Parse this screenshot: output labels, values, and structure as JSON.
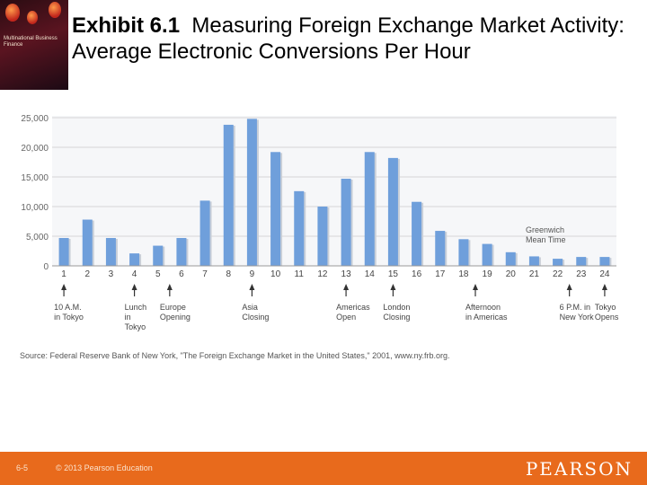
{
  "slide": {
    "title_bold": "Exhibit 6.1",
    "title_rest": "Measuring Foreign Exchange Market Activity: Average Electronic Conversions Per Hour",
    "page_number": "6-5",
    "copyright": "© 2013 Pearson Education",
    "brand": "PEARSON",
    "source": "Source: Federal Reserve Bank of New York, \"The Foreign Exchange Market in the United States,\" 2001, www.ny.frb.org.",
    "cover_text": "Multinational Business Finance"
  },
  "colors": {
    "bar": "#6f9fdb",
    "bar_shadow": "#c9cfd8",
    "grid": "#d6d6d6",
    "accent": "#e86a1c"
  },
  "chart_data": {
    "type": "bar",
    "categories": [
      "1",
      "2",
      "3",
      "4",
      "5",
      "6",
      "7",
      "8",
      "9",
      "10",
      "11",
      "12",
      "13",
      "14",
      "15",
      "16",
      "17",
      "18",
      "19",
      "20",
      "21",
      "22",
      "23",
      "24"
    ],
    "values": [
      4700,
      7800,
      4700,
      2100,
      3400,
      4700,
      11000,
      23800,
      24800,
      19200,
      12600,
      10000,
      14700,
      19200,
      18200,
      10800,
      5900,
      4500,
      3700,
      2300,
      1600,
      1200,
      1500,
      1500
    ],
    "yticks": [
      "0",
      "5,000",
      "10,000",
      "15,000",
      "20,000",
      "25,000"
    ],
    "ylim": [
      0,
      25000
    ],
    "xlabel": "",
    "ylabel": "",
    "axis_note": [
      "Greenwich",
      "Mean Time"
    ],
    "annotations": [
      {
        "hour": 1,
        "lines": [
          "10 A.M.",
          "in Tokyo"
        ]
      },
      {
        "hour": 4,
        "lines": [
          "Lunch",
          "in",
          "Tokyo"
        ]
      },
      {
        "hour": 5.5,
        "lines": [
          "Europe",
          "Opening"
        ]
      },
      {
        "hour": 9,
        "lines": [
          "Asia",
          "Closing"
        ]
      },
      {
        "hour": 13,
        "lines": [
          "Americas",
          "Open"
        ]
      },
      {
        "hour": 15,
        "lines": [
          "London",
          "Closing"
        ]
      },
      {
        "hour": 18.5,
        "lines": [
          "Afternoon",
          "in Americas"
        ]
      },
      {
        "hour": 22.5,
        "lines": [
          "6 P.M. in",
          "New York"
        ]
      },
      {
        "hour": 24,
        "lines": [
          "Tokyo",
          "Opens"
        ]
      }
    ]
  }
}
